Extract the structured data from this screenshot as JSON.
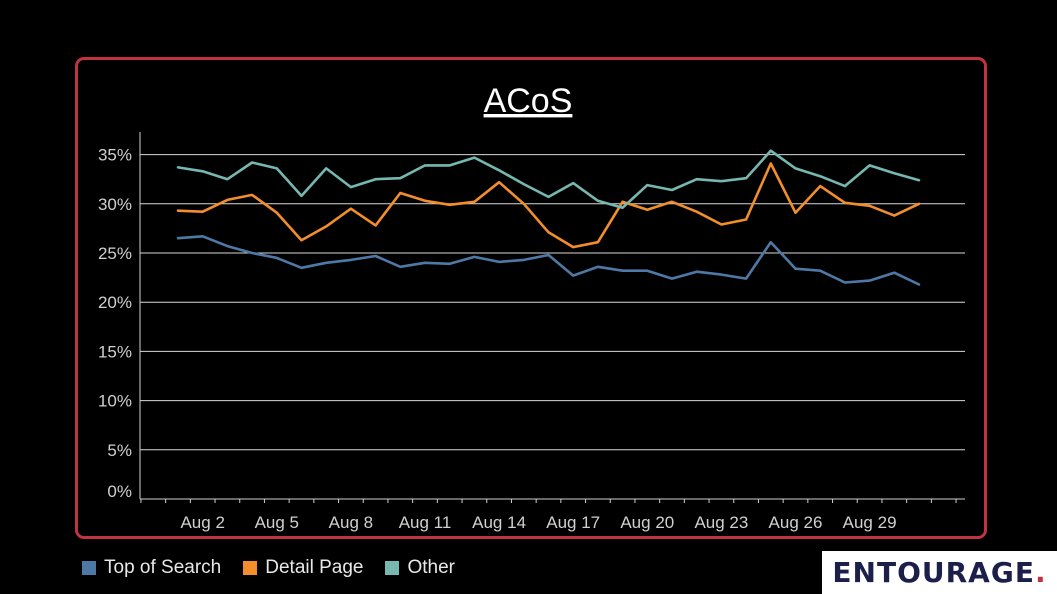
{
  "chart_data": {
    "type": "line",
    "title": "ACoS",
    "xlabel": "",
    "ylabel": "",
    "ylim": [
      0,
      37
    ],
    "yticks": [
      {
        "value": 0,
        "label": "0%"
      },
      {
        "value": 5,
        "label": "5%"
      },
      {
        "value": 10,
        "label": "10%"
      },
      {
        "value": 15,
        "label": "15%"
      },
      {
        "value": 20,
        "label": "20%"
      },
      {
        "value": 25,
        "label": "25%"
      },
      {
        "value": 30,
        "label": "30%"
      },
      {
        "value": 35,
        "label": "35%"
      }
    ],
    "x": [
      1,
      2,
      3,
      4,
      5,
      6,
      7,
      8,
      9,
      10,
      11,
      12,
      13,
      14,
      15,
      16,
      17,
      18,
      19,
      20,
      21,
      22,
      23,
      24,
      25,
      26,
      27,
      28,
      29,
      30,
      31
    ],
    "xtick_labels": [
      {
        "x": 2,
        "label": "Aug 2"
      },
      {
        "x": 5,
        "label": "Aug 5"
      },
      {
        "x": 8,
        "label": "Aug 8"
      },
      {
        "x": 11,
        "label": "Aug 11"
      },
      {
        "x": 14,
        "label": "Aug 14"
      },
      {
        "x": 17,
        "label": "Aug 17"
      },
      {
        "x": 20,
        "label": "Aug 20"
      },
      {
        "x": 23,
        "label": "Aug 23"
      },
      {
        "x": 26,
        "label": "Aug 26"
      },
      {
        "x": 29,
        "label": "Aug 29"
      }
    ],
    "grid": true,
    "legend_position": "bottom-left",
    "series": [
      {
        "name": "Top of Search",
        "color": "#4e79a7",
        "values": [
          26.5,
          26.7,
          25.7,
          25.0,
          24.5,
          23.5,
          24.0,
          24.3,
          24.7,
          23.6,
          24.0,
          23.9,
          24.6,
          24.1,
          24.3,
          24.8,
          22.7,
          23.6,
          23.2,
          23.2,
          22.4,
          23.1,
          22.8,
          22.4,
          26.1,
          23.4,
          23.2,
          22.0,
          22.2,
          23.0,
          21.8
        ]
      },
      {
        "name": "Detail Page",
        "color": "#f28e2b",
        "values": [
          29.3,
          29.2,
          30.4,
          30.9,
          29.1,
          26.3,
          27.7,
          29.5,
          27.8,
          31.1,
          30.3,
          29.9,
          30.2,
          32.2,
          30.0,
          27.1,
          25.6,
          26.1,
          30.2,
          29.4,
          30.2,
          29.2,
          27.9,
          28.4,
          34.1,
          29.1,
          31.8,
          30.1,
          29.8,
          28.8,
          30.0
        ]
      },
      {
        "name": "Other",
        "color": "#76b7b2",
        "values": [
          33.7,
          33.3,
          32.5,
          34.2,
          33.6,
          30.8,
          33.6,
          31.7,
          32.5,
          32.6,
          33.9,
          33.9,
          34.7,
          33.4,
          32.0,
          30.7,
          32.1,
          30.3,
          29.6,
          31.9,
          31.4,
          32.5,
          32.3,
          32.6,
          35.4,
          33.6,
          32.8,
          31.8,
          33.9,
          33.1,
          32.4
        ]
      }
    ]
  },
  "logo": {
    "text": "ENTOURAGE",
    "dot": "."
  }
}
